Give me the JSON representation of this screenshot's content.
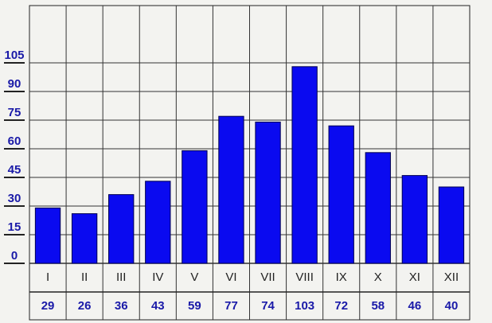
{
  "chart_data": {
    "type": "bar",
    "categories": [
      "I",
      "II",
      "III",
      "IV",
      "V",
      "VI",
      "VII",
      "VIII",
      "IX",
      "X",
      "XI",
      "XII"
    ],
    "values": [
      29,
      26,
      36,
      43,
      59,
      77,
      74,
      103,
      72,
      58,
      46,
      40
    ],
    "color": "#0a0af0",
    "ylim": [
      0,
      135
    ],
    "yticks": [
      0,
      15,
      30,
      45,
      60,
      75,
      90,
      105
    ],
    "grid": true
  }
}
